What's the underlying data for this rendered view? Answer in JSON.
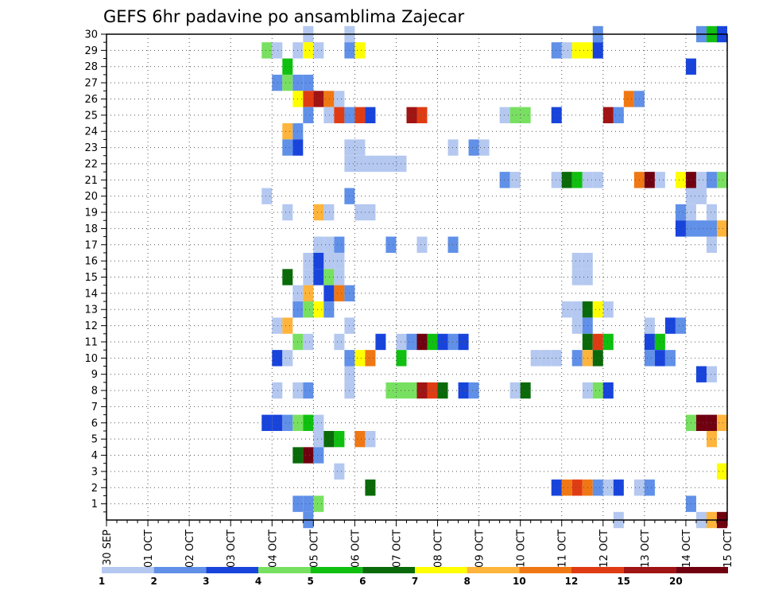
{
  "chart_data": {
    "type": "heatmap",
    "title": "GEFS 6hr padavine po ansamblima Zajecar",
    "xlabel": "",
    "ylabel": "",
    "x_ticks": [
      "30 SEP",
      "01 OCT",
      "02 OCT",
      "03 OCT",
      "04 OCT",
      "05 OCT",
      "06 OCT",
      "07 OCT",
      "08 OCT",
      "09 OCT",
      "10 OCT",
      "11 OCT",
      "12 OCT",
      "13 OCT",
      "14 OCT",
      "15 OCT"
    ],
    "x_range": [
      "30 SEP",
      "15 OCT"
    ],
    "x_step": "6hr",
    "y_ticks": [
      "1",
      "2",
      "3",
      "4",
      "5",
      "6",
      "7",
      "8",
      "9",
      "10",
      "11",
      "12",
      "13",
      "14",
      "15",
      "16",
      "17",
      "18",
      "19",
      "20",
      "21",
      "22",
      "23",
      "24",
      "25",
      "26",
      "27",
      "28",
      "29",
      "30"
    ],
    "ylim": [
      0,
      30
    ],
    "grid": true,
    "colorbar": {
      "labels": [
        "1",
        "2",
        "3",
        "4",
        "5",
        "6",
        "7",
        "8",
        "10",
        "12",
        "15",
        "20"
      ],
      "colors": [
        "#b4c8f0",
        "#6090e8",
        "#1844dc",
        "#78e060",
        "#10c010",
        "#0a6a0a",
        "#ffff00",
        "#ffb43c",
        "#f07814",
        "#e03c14",
        "#a01414",
        "#700010"
      ]
    },
    "cells_note": "each cell = [row, day_offset_from_30SEP, class_index]; row = ensemble member; class_index into colorbar.colors",
    "cells": [
      [
        30,
        4.75,
        1
      ],
      [
        30,
        5.75,
        1
      ],
      [
        30,
        11.75,
        2
      ],
      [
        30,
        14.25,
        2
      ],
      [
        30,
        14.5,
        5
      ],
      [
        30,
        14.75,
        3
      ],
      [
        29,
        3.75,
        4
      ],
      [
        29,
        4.0,
        1
      ],
      [
        29,
        4.5,
        1
      ],
      [
        29,
        4.75,
        7
      ],
      [
        29,
        5.0,
        1
      ],
      [
        29,
        5.75,
        2
      ],
      [
        29,
        6.0,
        7
      ],
      [
        29,
        10.75,
        2
      ],
      [
        29,
        11.0,
        1
      ],
      [
        29,
        11.25,
        7
      ],
      [
        29,
        11.5,
        7
      ],
      [
        29,
        11.75,
        3
      ],
      [
        28,
        4.25,
        5
      ],
      [
        28,
        14.0,
        3
      ],
      [
        27,
        4.0,
        2
      ],
      [
        27,
        4.25,
        4
      ],
      [
        27,
        4.5,
        2
      ],
      [
        27,
        4.75,
        2
      ],
      [
        26,
        4.5,
        7
      ],
      [
        26,
        4.75,
        10
      ],
      [
        26,
        5.0,
        11
      ],
      [
        26,
        5.25,
        9
      ],
      [
        26,
        5.5,
        1
      ],
      [
        26,
        12.5,
        9
      ],
      [
        26,
        12.75,
        2
      ],
      [
        25,
        4.75,
        2
      ],
      [
        25,
        5.25,
        1
      ],
      [
        25,
        5.5,
        10
      ],
      [
        25,
        5.75,
        2
      ],
      [
        25,
        6.0,
        10
      ],
      [
        25,
        6.25,
        3
      ],
      [
        25,
        7.25,
        11
      ],
      [
        25,
        7.5,
        10
      ],
      [
        25,
        9.5,
        1
      ],
      [
        25,
        9.75,
        4
      ],
      [
        25,
        10.0,
        4
      ],
      [
        25,
        10.75,
        3
      ],
      [
        25,
        12.0,
        11
      ],
      [
        25,
        12.25,
        2
      ],
      [
        24,
        4.25,
        8
      ],
      [
        24,
        4.5,
        2
      ],
      [
        23,
        4.25,
        2
      ],
      [
        23,
        4.5,
        3
      ],
      [
        23,
        5.75,
        1
      ],
      [
        23,
        6.0,
        1
      ],
      [
        23,
        8.25,
        1
      ],
      [
        23,
        8.75,
        2
      ],
      [
        23,
        9.0,
        1
      ],
      [
        22,
        5.75,
        1
      ],
      [
        22,
        6.0,
        1
      ],
      [
        22,
        6.25,
        1
      ],
      [
        22,
        6.5,
        1
      ],
      [
        22,
        6.75,
        1
      ],
      [
        22,
        7.0,
        1
      ],
      [
        21,
        9.5,
        2
      ],
      [
        21,
        9.75,
        1
      ],
      [
        21,
        10.75,
        1
      ],
      [
        21,
        11.0,
        6
      ],
      [
        21,
        11.25,
        5
      ],
      [
        21,
        11.5,
        1
      ],
      [
        21,
        11.75,
        1
      ],
      [
        21,
        12.75,
        9
      ],
      [
        21,
        13.0,
        12
      ],
      [
        21,
        13.25,
        1
      ],
      [
        21,
        13.75,
        7
      ],
      [
        21,
        14.0,
        12
      ],
      [
        21,
        14.25,
        1
      ],
      [
        21,
        14.5,
        2
      ],
      [
        21,
        14.75,
        4
      ],
      [
        20,
        3.75,
        1
      ],
      [
        20,
        5.75,
        2
      ],
      [
        20,
        14.0,
        1
      ],
      [
        20,
        14.25,
        1
      ],
      [
        19,
        4.25,
        1
      ],
      [
        19,
        5.0,
        8
      ],
      [
        19,
        5.25,
        1
      ],
      [
        19,
        6.0,
        1
      ],
      [
        19,
        6.25,
        1
      ],
      [
        19,
        13.75,
        2
      ],
      [
        19,
        14.0,
        1
      ],
      [
        19,
        14.5,
        1
      ],
      [
        18,
        13.75,
        3
      ],
      [
        18,
        14.0,
        2
      ],
      [
        18,
        14.25,
        2
      ],
      [
        18,
        14.5,
        2
      ],
      [
        18,
        14.75,
        8
      ],
      [
        17,
        5.0,
        1
      ],
      [
        17,
        5.25,
        1
      ],
      [
        17,
        5.5,
        2
      ],
      [
        17,
        6.75,
        2
      ],
      [
        17,
        7.5,
        1
      ],
      [
        17,
        8.25,
        2
      ],
      [
        17,
        14.5,
        1
      ],
      [
        16,
        4.75,
        1
      ],
      [
        16,
        5.0,
        3
      ],
      [
        16,
        5.25,
        1
      ],
      [
        16,
        5.5,
        1
      ],
      [
        16,
        11.25,
        1
      ],
      [
        16,
        11.5,
        1
      ],
      [
        15,
        4.25,
        6
      ],
      [
        15,
        4.75,
        1
      ],
      [
        15,
        5.0,
        3
      ],
      [
        15,
        5.25,
        4
      ],
      [
        15,
        5.5,
        1
      ],
      [
        15,
        11.25,
        1
      ],
      [
        15,
        11.5,
        1
      ],
      [
        14,
        4.5,
        1
      ],
      [
        14,
        4.75,
        8
      ],
      [
        14,
        5.25,
        3
      ],
      [
        14,
        5.5,
        9
      ],
      [
        14,
        5.75,
        2
      ],
      [
        13,
        4.5,
        2
      ],
      [
        13,
        4.75,
        4
      ],
      [
        13,
        5.0,
        7
      ],
      [
        13,
        5.25,
        2
      ],
      [
        13,
        11.0,
        1
      ],
      [
        13,
        11.25,
        1
      ],
      [
        13,
        11.5,
        6
      ],
      [
        13,
        11.75,
        7
      ],
      [
        13,
        12.0,
        1
      ],
      [
        12,
        4.0,
        1
      ],
      [
        12,
        4.25,
        8
      ],
      [
        12,
        5.75,
        1
      ],
      [
        12,
        11.25,
        1
      ],
      [
        12,
        11.5,
        2
      ],
      [
        12,
        13.0,
        1
      ],
      [
        12,
        13.5,
        3
      ],
      [
        12,
        13.75,
        2
      ],
      [
        11,
        4.5,
        4
      ],
      [
        11,
        4.75,
        1
      ],
      [
        11,
        5.5,
        1
      ],
      [
        11,
        6.5,
        3
      ],
      [
        11,
        7.0,
        1
      ],
      [
        11,
        7.25,
        2
      ],
      [
        11,
        7.5,
        12
      ],
      [
        11,
        7.75,
        5
      ],
      [
        11,
        8.0,
        3
      ],
      [
        11,
        8.25,
        2
      ],
      [
        11,
        8.5,
        3
      ],
      [
        11,
        11.5,
        6
      ],
      [
        11,
        11.75,
        10
      ],
      [
        11,
        12.0,
        5
      ],
      [
        11,
        13.0,
        3
      ],
      [
        11,
        13.25,
        5
      ],
      [
        10,
        4.0,
        3
      ],
      [
        10,
        4.25,
        1
      ],
      [
        10,
        5.75,
        2
      ],
      [
        10,
        6.0,
        7
      ],
      [
        10,
        6.25,
        9
      ],
      [
        10,
        7.0,
        5
      ],
      [
        10,
        10.25,
        1
      ],
      [
        10,
        10.5,
        1
      ],
      [
        10,
        10.75,
        1
      ],
      [
        10,
        11.25,
        2
      ],
      [
        10,
        11.5,
        8
      ],
      [
        10,
        11.75,
        6
      ],
      [
        10,
        13.0,
        2
      ],
      [
        10,
        13.25,
        3
      ],
      [
        10,
        13.5,
        2
      ],
      [
        9,
        5.75,
        1
      ],
      [
        9,
        14.25,
        3
      ],
      [
        9,
        14.5,
        1
      ],
      [
        8,
        4.0,
        1
      ],
      [
        8,
        4.5,
        1
      ],
      [
        8,
        4.75,
        2
      ],
      [
        8,
        5.75,
        1
      ],
      [
        8,
        6.75,
        4
      ],
      [
        8,
        7.0,
        4
      ],
      [
        8,
        7.25,
        4
      ],
      [
        8,
        7.5,
        11
      ],
      [
        8,
        7.75,
        10
      ],
      [
        8,
        8.0,
        6
      ],
      [
        8,
        8.5,
        3
      ],
      [
        8,
        8.75,
        2
      ],
      [
        8,
        9.75,
        1
      ],
      [
        8,
        10.0,
        6
      ],
      [
        8,
        11.5,
        1
      ],
      [
        8,
        11.75,
        4
      ],
      [
        8,
        12.0,
        3
      ],
      [
        6,
        3.75,
        3
      ],
      [
        6,
        4.0,
        3
      ],
      [
        6,
        4.25,
        2
      ],
      [
        6,
        4.5,
        4
      ],
      [
        6,
        4.75,
        5
      ],
      [
        6,
        5.0,
        1
      ],
      [
        6,
        14.0,
        4
      ],
      [
        6,
        14.25,
        12
      ],
      [
        6,
        14.5,
        12
      ],
      [
        6,
        14.75,
        8
      ],
      [
        5,
        5.0,
        1
      ],
      [
        5,
        5.25,
        6
      ],
      [
        5,
        5.5,
        5
      ],
      [
        5,
        6.0,
        9
      ],
      [
        5,
        6.25,
        1
      ],
      [
        5,
        14.5,
        8
      ],
      [
        4,
        4.5,
        6
      ],
      [
        4,
        4.75,
        12
      ],
      [
        4,
        5.0,
        2
      ],
      [
        3,
        5.5,
        1
      ],
      [
        3,
        14.75,
        7
      ],
      [
        2,
        6.25,
        6
      ],
      [
        2,
        10.75,
        3
      ],
      [
        2,
        11.0,
        9
      ],
      [
        2,
        11.25,
        10
      ],
      [
        2,
        11.5,
        9
      ],
      [
        2,
        11.75,
        2
      ],
      [
        2,
        12.0,
        1
      ],
      [
        2,
        12.25,
        3
      ],
      [
        2,
        12.75,
        1
      ],
      [
        2,
        13.0,
        2
      ],
      [
        1,
        4.5,
        2
      ],
      [
        1,
        4.75,
        2
      ],
      [
        1,
        5.0,
        4
      ],
      [
        1,
        14.0,
        2
      ],
      [
        0,
        4.75,
        2
      ],
      [
        0,
        12.25,
        1
      ],
      [
        0,
        14.25,
        1
      ],
      [
        0,
        14.5,
        8
      ],
      [
        0,
        14.75,
        12
      ]
    ]
  }
}
